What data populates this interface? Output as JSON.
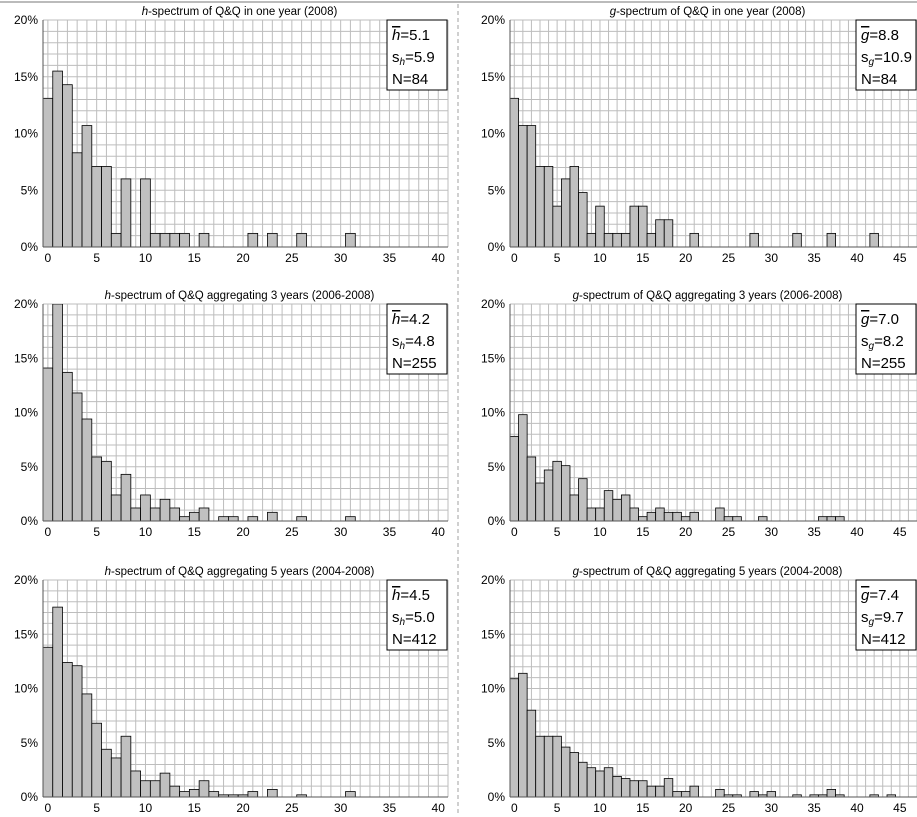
{
  "chart_data": [
    {
      "type": "bar",
      "title_var": "h",
      "title_rest": "-spectrum of Q&Q in one year (2008)",
      "x": [
        0,
        1,
        2,
        3,
        4,
        5,
        6,
        7,
        8,
        9,
        10,
        11,
        12,
        13,
        14,
        15,
        16,
        17,
        18,
        19,
        20,
        21,
        22,
        23,
        24,
        25,
        26,
        27,
        28,
        29,
        30,
        31,
        32,
        33,
        34,
        35,
        36,
        37,
        38,
        39,
        40
      ],
      "values": [
        13.1,
        15.5,
        14.3,
        8.3,
        10.7,
        7.1,
        7.1,
        1.2,
        6.0,
        0,
        6.0,
        1.2,
        1.2,
        1.2,
        1.2,
        0,
        1.2,
        0,
        0,
        0,
        0,
        1.2,
        0,
        1.2,
        0,
        0,
        1.2,
        0,
        0,
        0,
        0,
        1.2,
        0,
        0,
        0,
        0,
        0,
        0,
        0,
        0,
        0
      ],
      "xticks": [
        0,
        5,
        10,
        15,
        20,
        25,
        30,
        35,
        40
      ],
      "xlim": [
        -0.5,
        41
      ],
      "ylim": [
        0,
        20
      ],
      "yticks": [
        "0%",
        "5%",
        "10%",
        "15%",
        "20%"
      ],
      "stats": {
        "mean_var": "h",
        "mean": "=5.1",
        "sd_label": "s",
        "sd_sub": "h",
        "sd": "=5.9",
        "n": "N=84"
      }
    },
    {
      "type": "bar",
      "title_var": "g",
      "title_rest": "-spectrum of Q&Q in one year (2008)",
      "x": [
        0,
        1,
        2,
        3,
        4,
        5,
        6,
        7,
        8,
        9,
        10,
        11,
        12,
        13,
        14,
        15,
        16,
        17,
        18,
        19,
        20,
        21,
        22,
        23,
        24,
        25,
        26,
        27,
        28,
        29,
        30,
        31,
        32,
        33,
        34,
        35,
        36,
        37,
        38,
        39,
        40,
        41,
        42,
        43,
        44,
        45
      ],
      "values": [
        13.1,
        10.7,
        10.7,
        7.1,
        7.1,
        3.6,
        6.0,
        7.1,
        4.8,
        1.2,
        3.6,
        1.2,
        1.2,
        1.2,
        3.6,
        3.6,
        1.2,
        2.4,
        2.4,
        0,
        0,
        1.2,
        0,
        0,
        0,
        0,
        0,
        0,
        1.2,
        0,
        0,
        0,
        0,
        1.2,
        0,
        0,
        0,
        1.2,
        0,
        0,
        0,
        0,
        1.2,
        0,
        0,
        0
      ],
      "xticks": [
        0,
        5,
        10,
        15,
        20,
        25,
        30,
        35,
        40,
        45
      ],
      "xlim": [
        -0.5,
        47
      ],
      "ylim": [
        0,
        20
      ],
      "yticks": [
        "0%",
        "5%",
        "10%",
        "15%",
        "20%"
      ],
      "stats": {
        "mean_var": "g",
        "mean": "=8.8",
        "sd_label": "s",
        "sd_sub": "g",
        "sd": "=10.9",
        "n": "N=84"
      }
    },
    {
      "type": "bar",
      "title_var": "h",
      "title_rest": "-spectrum of Q&Q aggregating 3 years (2006-2008)",
      "x": [
        0,
        1,
        2,
        3,
        4,
        5,
        6,
        7,
        8,
        9,
        10,
        11,
        12,
        13,
        14,
        15,
        16,
        17,
        18,
        19,
        20,
        21,
        22,
        23,
        24,
        25,
        26,
        27,
        28,
        29,
        30,
        31,
        32,
        33,
        34,
        35,
        36,
        37,
        38,
        39,
        40
      ],
      "values": [
        14.1,
        20.0,
        13.7,
        11.8,
        9.4,
        5.9,
        5.5,
        2.4,
        4.3,
        1.2,
        2.4,
        1.2,
        2.0,
        1.2,
        0.4,
        0.8,
        1.2,
        0,
        0.4,
        0.4,
        0,
        0.4,
        0,
        0.8,
        0,
        0,
        0.4,
        0,
        0,
        0,
        0,
        0.4,
        0,
        0,
        0,
        0,
        0,
        0,
        0,
        0,
        0
      ],
      "xticks": [
        0,
        5,
        10,
        15,
        20,
        25,
        30,
        35,
        40
      ],
      "xlim": [
        -0.5,
        41
      ],
      "ylim": [
        0,
        20
      ],
      "yticks": [
        "0%",
        "5%",
        "10%",
        "15%",
        "20%"
      ],
      "stats": {
        "mean_var": "h",
        "mean": "=4.2",
        "sd_label": "s",
        "sd_sub": "h",
        "sd": "=4.8",
        "n": "N=255"
      }
    },
    {
      "type": "bar",
      "title_var": "g",
      "title_rest": "-spectrum of Q&Q aggregating 3 years (2006-2008)",
      "x": [
        0,
        1,
        2,
        3,
        4,
        5,
        6,
        7,
        8,
        9,
        10,
        11,
        12,
        13,
        14,
        15,
        16,
        17,
        18,
        19,
        20,
        21,
        22,
        23,
        24,
        25,
        26,
        27,
        28,
        29,
        30,
        31,
        32,
        33,
        34,
        35,
        36,
        37,
        38,
        39,
        40,
        41,
        42,
        43,
        44,
        45
      ],
      "values": [
        7.8,
        9.8,
        5.9,
        3.5,
        4.7,
        5.5,
        5.1,
        2.4,
        3.9,
        1.2,
        1.2,
        2.8,
        2.0,
        2.4,
        1.2,
        0.4,
        0.8,
        1.2,
        0.8,
        0.8,
        0.4,
        0.8,
        0,
        0,
        1.2,
        0.4,
        0.4,
        0,
        0,
        0.4,
        0,
        0,
        0,
        0,
        0,
        0,
        0.4,
        0.4,
        0.4,
        0,
        0,
        0,
        0,
        0,
        0,
        0
      ],
      "xticks": [
        0,
        5,
        10,
        15,
        20,
        25,
        30,
        35,
        40,
        45
      ],
      "xlim": [
        -0.5,
        47
      ],
      "ylim": [
        0,
        20
      ],
      "yticks": [
        "0%",
        "5%",
        "10%",
        "15%",
        "20%"
      ],
      "stats": {
        "mean_var": "g",
        "mean": "=7.0",
        "sd_label": "s",
        "sd_sub": "g",
        "sd": "=8.2",
        "n": "N=255"
      }
    },
    {
      "type": "bar",
      "title_var": "h",
      "title_rest": "-spectrum of Q&Q aggregating 5 years (2004-2008)",
      "x": [
        0,
        1,
        2,
        3,
        4,
        5,
        6,
        7,
        8,
        9,
        10,
        11,
        12,
        13,
        14,
        15,
        16,
        17,
        18,
        19,
        20,
        21,
        22,
        23,
        24,
        25,
        26,
        27,
        28,
        29,
        30,
        31,
        32,
        33,
        34,
        35,
        36,
        37,
        38,
        39,
        40
      ],
      "values": [
        13.8,
        17.5,
        12.4,
        12.1,
        9.5,
        6.8,
        4.4,
        3.6,
        5.6,
        2.4,
        1.5,
        1.5,
        2.2,
        1.0,
        0.5,
        0.7,
        1.5,
        0.5,
        0.2,
        0.2,
        0.2,
        0.5,
        0,
        0.7,
        0,
        0,
        0.2,
        0,
        0,
        0,
        0,
        0.5,
        0,
        0,
        0,
        0,
        0,
        0,
        0,
        0,
        0
      ],
      "xticks": [
        0,
        5,
        10,
        15,
        20,
        25,
        30,
        35,
        40
      ],
      "xlim": [
        -0.5,
        41
      ],
      "ylim": [
        0,
        20
      ],
      "yticks": [
        "0%",
        "5%",
        "10%",
        "15%",
        "20%"
      ],
      "stats": {
        "mean_var": "h",
        "mean": "=4.5",
        "sd_label": "s",
        "sd_sub": "h",
        "sd": "=5.0",
        "n": "N=412"
      }
    },
    {
      "type": "bar",
      "title_var": "g",
      "title_rest": "-spectrum of Q&Q aggregating 5 years (2004-2008)",
      "x": [
        0,
        1,
        2,
        3,
        4,
        5,
        6,
        7,
        8,
        9,
        10,
        11,
        12,
        13,
        14,
        15,
        16,
        17,
        18,
        19,
        20,
        21,
        22,
        23,
        24,
        25,
        26,
        27,
        28,
        29,
        30,
        31,
        32,
        33,
        34,
        35,
        36,
        37,
        38,
        39,
        40,
        41,
        42,
        43,
        44,
        45
      ],
      "values": [
        10.9,
        11.4,
        8.0,
        5.6,
        5.6,
        5.6,
        4.6,
        4.1,
        3.2,
        2.7,
        2.4,
        2.7,
        1.9,
        1.7,
        1.5,
        1.5,
        1.0,
        1.0,
        1.7,
        0.5,
        0.5,
        1.0,
        0,
        0,
        0.7,
        0.2,
        0.2,
        0,
        0.5,
        0.2,
        0.5,
        0,
        0,
        0.2,
        0,
        0.2,
        0.2,
        0.7,
        0.2,
        0,
        0,
        0,
        0.2,
        0,
        0.2,
        0
      ],
      "xticks": [
        0,
        5,
        10,
        15,
        20,
        25,
        30,
        35,
        40,
        45
      ],
      "xlim": [
        -0.5,
        47
      ],
      "ylim": [
        0,
        20
      ],
      "yticks": [
        "0%",
        "5%",
        "10%",
        "15%",
        "20%"
      ],
      "stats": {
        "mean_var": "g",
        "mean": "=7.4",
        "sd_label": "s",
        "sd_sub": "g",
        "sd": "=9.7",
        "n": "N=412"
      }
    }
  ],
  "colors": {
    "bar_fill": "#c0c0c0",
    "bar_stroke": "#000000",
    "grid": "#bdbdbd",
    "separator": "#a0a0a0"
  }
}
